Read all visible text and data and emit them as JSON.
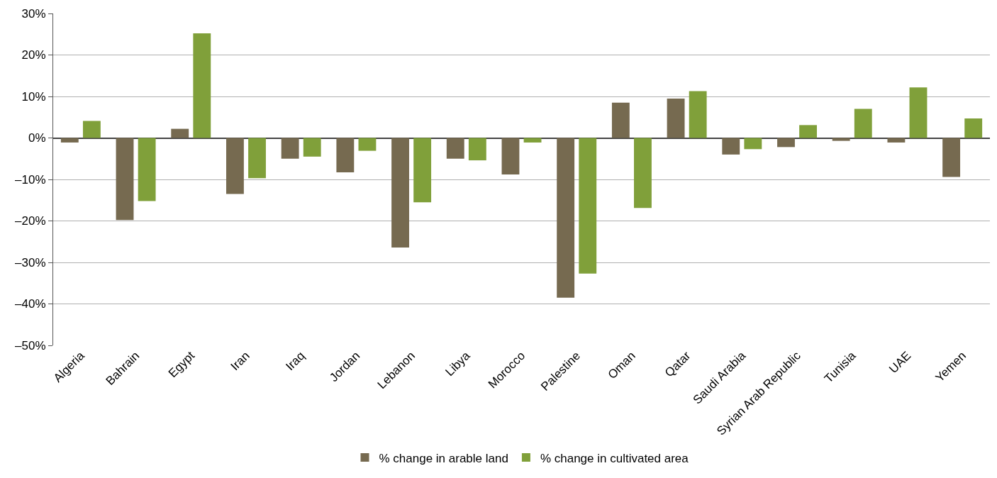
{
  "chart_data": {
    "type": "bar",
    "categories": [
      "Algeria",
      "Bahrain",
      "Egypt",
      "Iran",
      "Iraq",
      "Jordan",
      "Lebanon",
      "Libya",
      "Morocco",
      "Palestine",
      "Oman",
      "Qatar",
      "Saudi Arabia",
      "Syrian Arab Republic",
      "Tunisia",
      "UAE",
      "Yemen"
    ],
    "series": [
      {
        "name": "% change in arable land",
        "color": "#766a50",
        "values": [
          -1.1,
          -19.8,
          2.2,
          -13.5,
          -5.0,
          -8.3,
          -26.4,
          -5.0,
          -8.8,
          -38.5,
          8.5,
          9.5,
          -4.0,
          -2.2,
          -0.7,
          -1.1,
          -9.4
        ]
      },
      {
        "name": "% change in cultivated area",
        "color": "#80a03a",
        "values": [
          4.1,
          -15.2,
          25.2,
          -9.7,
          -4.5,
          -3.1,
          -15.5,
          -5.4,
          -1.1,
          -32.7,
          -16.9,
          11.3,
          -2.7,
          3.1,
          7.0,
          12.2,
          4.7
        ]
      }
    ],
    "ylim": [
      -50,
      30
    ],
    "yticks": [
      {
        "value": -50,
        "label": "–50%"
      },
      {
        "value": -40,
        "label": "–40%"
      },
      {
        "value": -30,
        "label": "–30%"
      },
      {
        "value": -20,
        "label": "–20%"
      },
      {
        "value": -10,
        "label": "–10%"
      },
      {
        "value": 0,
        "label": "0%"
      },
      {
        "value": 10,
        "label": "10%"
      },
      {
        "value": 20,
        "label": "20%"
      },
      {
        "value": 30,
        "label": "30%"
      }
    ],
    "grid": "y",
    "legend": "bottom"
  }
}
